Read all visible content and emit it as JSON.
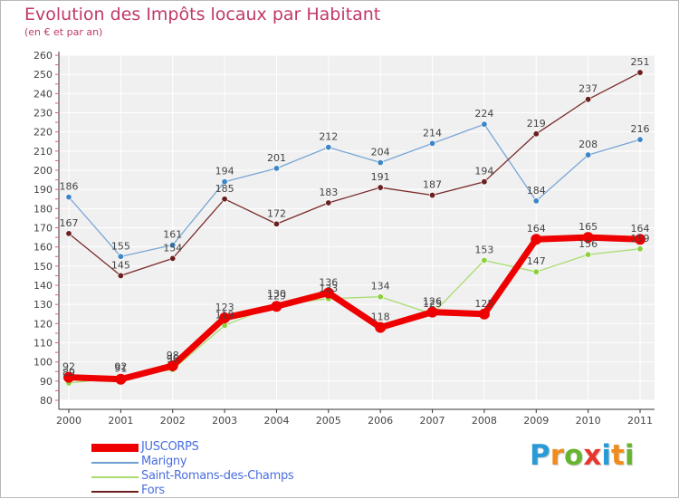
{
  "title": "Evolution des Impôts locaux par Habitant",
  "subtitle": "(en € et par an)",
  "brand": {
    "letters": [
      "P",
      "r",
      "o",
      "x",
      "i",
      "t",
      "i"
    ],
    "colors": [
      "#2a9ad6",
      "#f08c1e",
      "#66b52f",
      "#e8362c",
      "#2a9ad6",
      "#f08c1e",
      "#66b52f"
    ]
  },
  "chart_data": {
    "type": "line",
    "title": "Evolution des Impôts locaux par Habitant",
    "subtitle": "(en € et par an)",
    "xlabel": "",
    "ylabel": "",
    "x": [
      "2000",
      "2001",
      "2002",
      "2003",
      "2004",
      "2005",
      "2006",
      "2007",
      "2008",
      "2009",
      "2010",
      "2011"
    ],
    "ylim": [
      80,
      260
    ],
    "yticks": [
      "80",
      "90",
      "100",
      "110",
      "120",
      "130",
      "140",
      "150",
      "160",
      "170",
      "180",
      "190",
      "200",
      "210",
      "220",
      "230",
      "240",
      "250",
      "260"
    ],
    "grid": true,
    "legend_position": "bottom-left",
    "series": [
      {
        "name": "JUSCORPS",
        "color": "#ee0000",
        "values": [
          92,
          91,
          98,
          123,
          129,
          136,
          118,
          126,
          125,
          164,
          165,
          164
        ],
        "labels": [
          "92",
          "91",
          "98",
          "123",
          "129",
          "136",
          "118",
          "126",
          "125",
          "164",
          "165",
          "164"
        ]
      },
      {
        "name": "Marigny",
        "color": "#6f9fd0",
        "values": [
          186,
          155,
          161,
          194,
          201,
          212,
          204,
          214,
          224,
          184,
          208,
          216
        ],
        "labels": [
          "186",
          "155",
          "161",
          "194",
          "201",
          "212",
          "204",
          "214",
          "224",
          "184",
          "208",
          "216"
        ]
      },
      {
        "name": "Saint-Romans-des-Champs",
        "color": "#a8dc6e",
        "values": [
          89,
          92,
          96,
          119,
          130,
          133,
          134,
          125,
          153,
          147,
          156,
          159
        ],
        "labels": [
          "89",
          "92",
          "96",
          "119",
          "130",
          "133",
          "134",
          "125",
          "153",
          "147",
          "156",
          "159"
        ]
      },
      {
        "name": "Fors",
        "color": "#6b1f1f",
        "values": [
          167,
          145,
          154,
          185,
          172,
          183,
          191,
          187,
          194,
          219,
          237,
          251
        ],
        "labels": [
          "167",
          "145",
          "154",
          "185",
          "172",
          "183",
          "191",
          "187",
          "194",
          "219",
          "237",
          "251"
        ]
      }
    ]
  }
}
